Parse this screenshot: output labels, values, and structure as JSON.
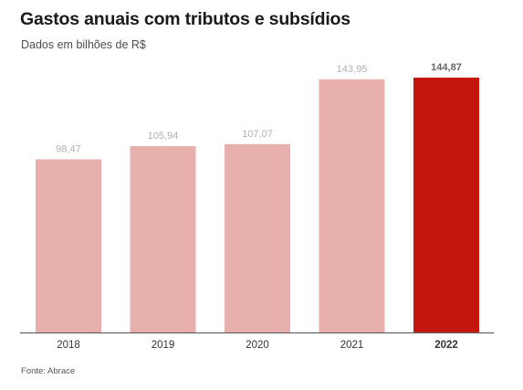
{
  "chart": {
    "title": "Gastos anuais com tributos e subsídios",
    "subtitle": "Dados em bilhões de R$",
    "source": "Fonte: Abrace"
  },
  "colors": {
    "bar_default": "#e8b0ad",
    "bar_highlight": "#c4160d",
    "label_default": "#b0b0b0",
    "label_highlight": "#666666",
    "axis": "#666666"
  },
  "chart_data": {
    "type": "bar",
    "title": "Gastos anuais com tributos e subsídios",
    "subtitle": "Dados em bilhões de R$",
    "xlabel": "",
    "ylabel": "",
    "categories": [
      "2018",
      "2019",
      "2020",
      "2021",
      "2022"
    ],
    "values": [
      98.47,
      105.94,
      107.07,
      143.95,
      144.87
    ],
    "value_labels": [
      "98,47",
      "105,94",
      "107,07",
      "143,95",
      "144,87"
    ],
    "highlight": "2022",
    "ylim": [
      0,
      144.87
    ],
    "grid": false,
    "legend": "none"
  }
}
